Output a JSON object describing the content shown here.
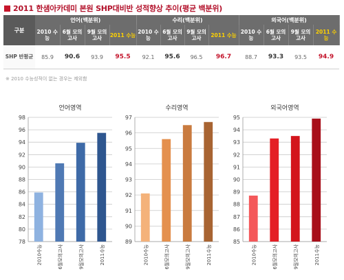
{
  "page": {
    "title": "2011 한샘아카데미 본원 SHP대비반 성적향상 추이(평균 백분위)",
    "note": "※ 2010 수능성적이 없는 경우는 제외함"
  },
  "table": {
    "corner": "구분",
    "groups": [
      "언어(백분위)",
      "수리(백분위)",
      "외국어(백분위)"
    ],
    "subheads": [
      "2010 수능",
      "6월 모의 고사",
      "9월 모의 고사",
      "2011 수능"
    ],
    "row_label": "SHP 반평균",
    "rows": [
      [
        "85.9",
        "90.6",
        "93.9",
        "95.5"
      ],
      [
        "92.1",
        "95.6",
        "96.5",
        "96.7"
      ],
      [
        "88.7",
        "93.3",
        "93.5",
        "94.9"
      ]
    ]
  },
  "colors": {
    "title": "#b3122b",
    "header_bg": "#6d6d6d",
    "highlight_header": "#ffd200",
    "highlight_value": "#c4142b"
  },
  "chart_data": [
    {
      "type": "bar",
      "title": "언어영역",
      "categories": [
        "2010수능",
        "6월모의고사",
        "9월모의고사",
        "2011수능"
      ],
      "values": [
        85.9,
        90.6,
        93.9,
        95.5
      ],
      "ylim": [
        78,
        98
      ],
      "ytick_step": 2,
      "grid": true,
      "colors": [
        "#8eb2e0",
        "#4f79b4",
        "#3e6aa7",
        "#2e568f"
      ]
    },
    {
      "type": "bar",
      "title": "수리영역",
      "categories": [
        "2010수능",
        "6월모의고사",
        "9월모의고사",
        "2011수능"
      ],
      "values": [
        92.1,
        95.6,
        96.5,
        96.7
      ],
      "ylim": [
        89,
        97
      ],
      "ytick_step": 1,
      "grid": true,
      "colors": [
        "#f4b27a",
        "#e4904e",
        "#c97b3f",
        "#a86432"
      ]
    },
    {
      "type": "bar",
      "title": "외국어영역",
      "categories": [
        "2010수능",
        "6월모의고사",
        "9월모의고사",
        "2011수능"
      ],
      "values": [
        88.7,
        93.3,
        93.5,
        94.9
      ],
      "ylim": [
        85,
        95
      ],
      "ytick_step": 1,
      "grid": true,
      "colors": [
        "#f4585a",
        "#e41f25",
        "#d3151c",
        "#a80f1a"
      ]
    }
  ]
}
